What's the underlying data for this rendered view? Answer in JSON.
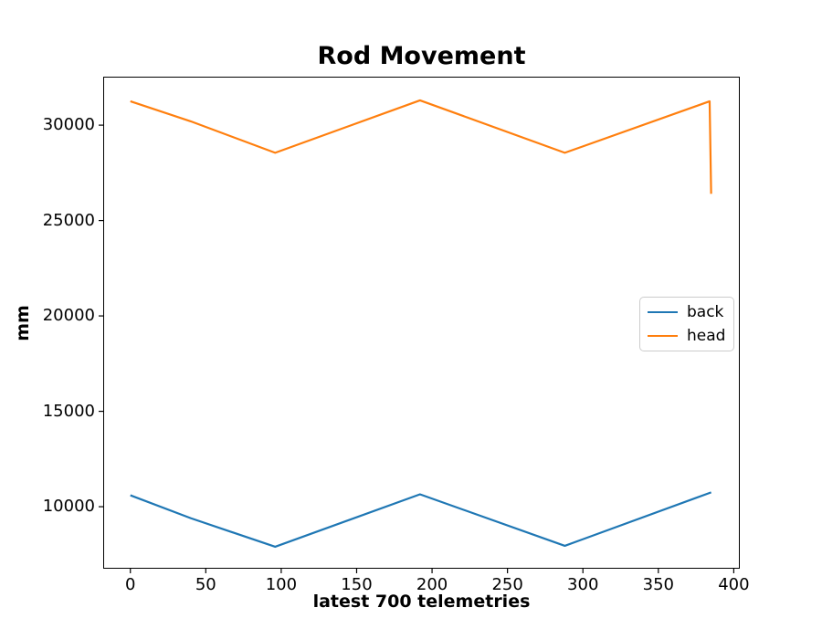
{
  "chart_data": {
    "type": "line",
    "title": "Rod Movement",
    "xlabel": "latest 700 telemetries",
    "ylabel": "mm",
    "xlim": [
      -18,
      404
    ],
    "ylim": [
      6750,
      32540
    ],
    "x_ticks": [
      "0",
      "50",
      "100",
      "150",
      "200",
      "250",
      "300",
      "350",
      "400"
    ],
    "x_tick_values": [
      0,
      50,
      100,
      150,
      200,
      250,
      300,
      350,
      400
    ],
    "y_ticks": [
      "10000",
      "15000",
      "20000",
      "25000",
      "30000"
    ],
    "y_tick_values": [
      10000,
      15000,
      20000,
      25000,
      30000
    ],
    "grid": false,
    "legend_position": "center-right",
    "background_color": "#ffffff",
    "axis_color": "#000000",
    "series": [
      {
        "name": "back",
        "color": "#1f77b4",
        "points": [
          [
            0,
            10600
          ],
          [
            40,
            9400
          ],
          [
            96,
            7900
          ],
          [
            192,
            10650
          ],
          [
            288,
            7950
          ],
          [
            385,
            10750
          ]
        ]
      },
      {
        "name": "head",
        "color": "#ff7f0e",
        "points": [
          [
            0,
            31250
          ],
          [
            40,
            30200
          ],
          [
            96,
            28550
          ],
          [
            192,
            31300
          ],
          [
            288,
            28550
          ],
          [
            384,
            31250
          ],
          [
            385,
            26400
          ]
        ]
      }
    ]
  }
}
